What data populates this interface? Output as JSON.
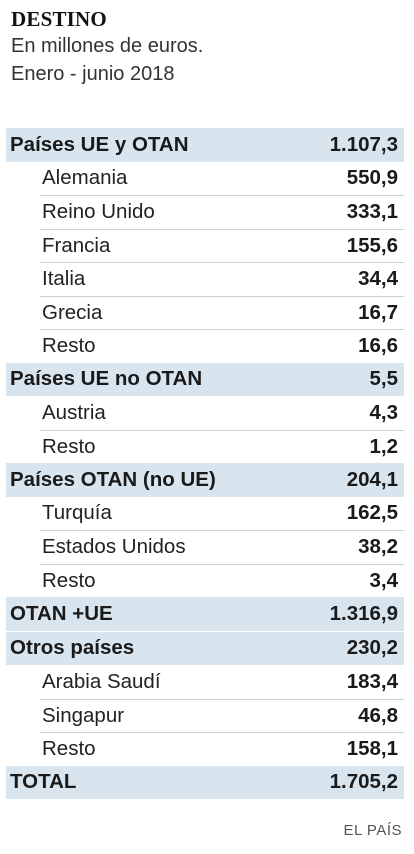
{
  "header": {
    "title": "DESTINO",
    "subtitle_line1": "En millones de euros.",
    "subtitle_line2": "Enero - junio 2018"
  },
  "source": "EL PAÍS",
  "colors": {
    "group_bg": "#d8e5ee",
    "rule": "#c9d3da"
  },
  "chart_data": {
    "type": "table",
    "title": "DESTINO",
    "subtitle": "En millones de euros. Enero - junio 2018",
    "rows": [
      {
        "kind": "group",
        "label": "Países UE y OTAN",
        "value": "1.107,3"
      },
      {
        "kind": "item",
        "label": "Alemania",
        "value": "550,9"
      },
      {
        "kind": "item",
        "label": "Reino Unido",
        "value": "333,1"
      },
      {
        "kind": "item",
        "label": "Francia",
        "value": "155,6"
      },
      {
        "kind": "item",
        "label": "Italia",
        "value": "34,4"
      },
      {
        "kind": "item",
        "label": "Grecia",
        "value": "16,7"
      },
      {
        "kind": "item",
        "label": "Resto",
        "value": "16,6"
      },
      {
        "kind": "group",
        "label": "Países UE no OTAN",
        "value": "5,5"
      },
      {
        "kind": "item",
        "label": "Austria",
        "value": "4,3"
      },
      {
        "kind": "item",
        "label": "Resto",
        "value": "1,2"
      },
      {
        "kind": "group",
        "label": "Países OTAN (no UE)",
        "value": "204,1"
      },
      {
        "kind": "item",
        "label": "Turquía",
        "value": "162,5"
      },
      {
        "kind": "item",
        "label": "Estados Unidos",
        "value": "38,2"
      },
      {
        "kind": "item",
        "label": "Resto",
        "value": "3,4"
      },
      {
        "kind": "group",
        "label": "OTAN +UE",
        "value": "1.316,9"
      },
      {
        "kind": "group",
        "label": "Otros países",
        "value": "230,2"
      },
      {
        "kind": "item",
        "label": "Arabia Saudí",
        "value": "183,4"
      },
      {
        "kind": "item",
        "label": "Singapur",
        "value": "46,8"
      },
      {
        "kind": "item",
        "label": "Resto",
        "value": "158,1"
      },
      {
        "kind": "group",
        "label": "TOTAL",
        "value": "1.705,2"
      }
    ]
  }
}
